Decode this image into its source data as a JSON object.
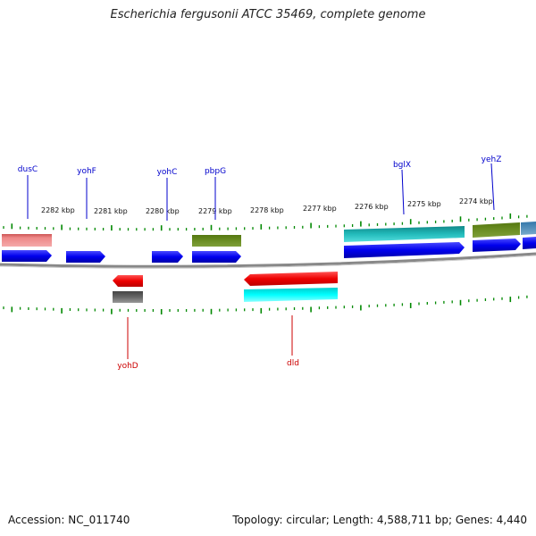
{
  "header": {
    "title": "Escherichia fergusonii ATCC 35469, complete genome"
  },
  "footer": {
    "accession": "Accession: NC_011740",
    "summary": "Topology: circular; Length: 4,588,711 bp; Genes: 4,440"
  },
  "scale": {
    "ticks": [
      "2282 kbp",
      "2281 kbp",
      "2280 kbp",
      "2279 kbp",
      "2278 kbp",
      "2277 kbp",
      "2276 kbp",
      "2275 kbp",
      "2274 kbp"
    ]
  },
  "genes": {
    "forward_labels": [
      "dusC",
      "yohF",
      "yohC",
      "pbpG",
      "bglX",
      "yehZ"
    ],
    "reverse_labels": [
      "yohD",
      "dld"
    ]
  },
  "colors": {
    "forward_label": "#0000cc",
    "reverse_label": "#cc0000",
    "tick": "#008800",
    "backbone": "#888888"
  }
}
